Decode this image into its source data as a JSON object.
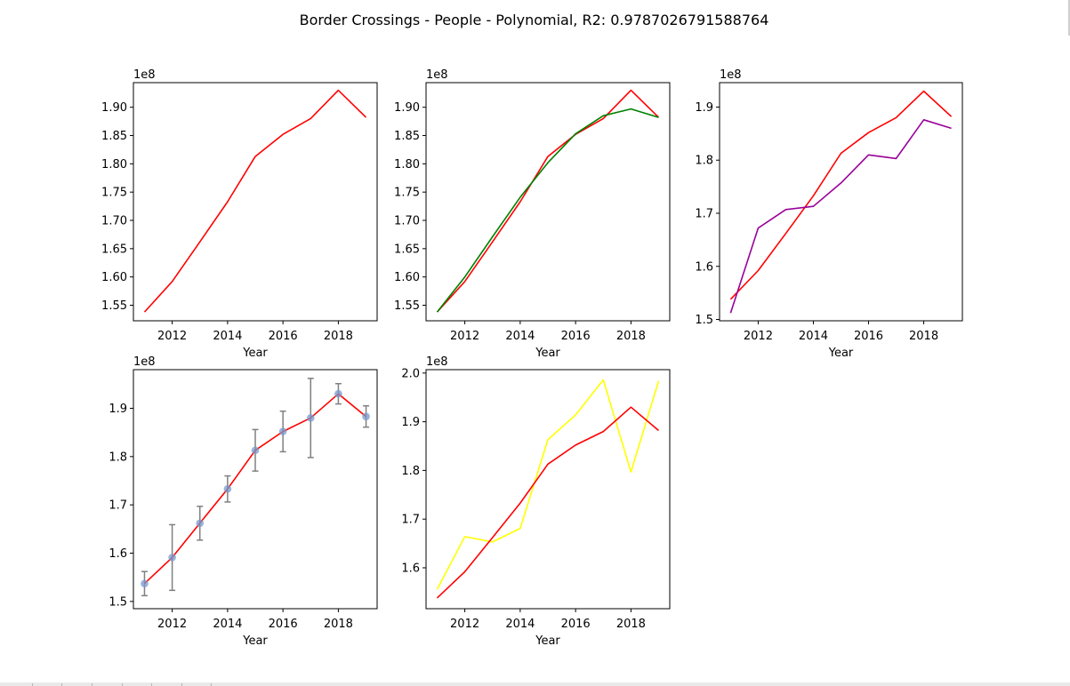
{
  "title": "Border Crossings - People - Polynomial, R2: 0.9787026791588764",
  "colors": {
    "actual": "#ff0000",
    "fit": "#008000",
    "alt": "#990099",
    "pred": "#ffff00",
    "scatter": "#7799cc",
    "errorbar": "#808080"
  },
  "chart_data": [
    {
      "type": "line",
      "xlabel": "Year",
      "offset_text": "1e8",
      "xticks": [
        "2012",
        "2014",
        "2016",
        "2018"
      ],
      "yticks": [
        "1.55",
        "1.60",
        "1.65",
        "1.70",
        "1.75",
        "1.80",
        "1.85",
        "1.90"
      ],
      "xlim": [
        2010.6,
        2019.4
      ],
      "ylim": [
        1.5225,
        1.9435
      ],
      "x": [
        2011,
        2012,
        2013,
        2014,
        2015,
        2016,
        2017,
        2018,
        2019
      ],
      "series": [
        {
          "color": "actual",
          "values": [
            1.538,
            1.592,
            1.662,
            1.733,
            1.813,
            1.852,
            1.88,
            1.93,
            1.882
          ]
        }
      ]
    },
    {
      "type": "line",
      "xlabel": "Year",
      "offset_text": "1e8",
      "xticks": [
        "2012",
        "2014",
        "2016",
        "2018"
      ],
      "yticks": [
        "1.55",
        "1.60",
        "1.65",
        "1.70",
        "1.75",
        "1.80",
        "1.85",
        "1.90"
      ],
      "xlim": [
        2010.6,
        2019.4
      ],
      "ylim": [
        1.5225,
        1.9435
      ],
      "x": [
        2011,
        2012,
        2013,
        2014,
        2015,
        2016,
        2017,
        2018,
        2019
      ],
      "series": [
        {
          "color": "actual",
          "values": [
            1.538,
            1.592,
            1.662,
            1.733,
            1.813,
            1.852,
            1.88,
            1.93,
            1.882
          ]
        },
        {
          "color": "fit",
          "values": [
            1.538,
            1.6,
            1.671,
            1.741,
            1.802,
            1.853,
            1.885,
            1.897,
            1.882
          ]
        }
      ]
    },
    {
      "type": "line",
      "xlabel": "Year",
      "offset_text": "1e8",
      "xticks": [
        "2012",
        "2014",
        "2016",
        "2018"
      ],
      "yticks": [
        "1.5",
        "1.6",
        "1.7",
        "1.8",
        "1.9"
      ],
      "xlim": [
        2010.6,
        2019.4
      ],
      "ylim": [
        1.4975,
        1.946
      ],
      "x": [
        2011,
        2012,
        2013,
        2014,
        2015,
        2016,
        2017,
        2018,
        2019
      ],
      "series": [
        {
          "color": "actual",
          "values": [
            1.538,
            1.592,
            1.662,
            1.733,
            1.813,
            1.852,
            1.88,
            1.93,
            1.882
          ]
        },
        {
          "color": "alt",
          "values": [
            1.512,
            1.672,
            1.707,
            1.713,
            1.757,
            1.81,
            1.803,
            1.876,
            1.86
          ]
        }
      ]
    },
    {
      "type": "scatter",
      "xlabel": "Year",
      "offset_text": "1e8",
      "xticks": [
        "2012",
        "2014",
        "2016",
        "2018"
      ],
      "yticks": [
        "1.5",
        "1.6",
        "1.7",
        "1.8",
        "1.9"
      ],
      "xlim": [
        2010.6,
        2019.4
      ],
      "ylim": [
        1.485,
        1.98
      ],
      "x": [
        2011,
        2012,
        2013,
        2014,
        2015,
        2016,
        2017,
        2018,
        2019
      ],
      "series": [
        {
          "color": "actual",
          "values": [
            1.537,
            1.591,
            1.662,
            1.733,
            1.813,
            1.852,
            1.88,
            1.93,
            1.883
          ]
        }
      ],
      "points": [
        1.537,
        1.591,
        1.662,
        1.733,
        1.813,
        1.852,
        1.88,
        1.93,
        1.883
      ],
      "errors": [
        0.025,
        0.068,
        0.035,
        0.027,
        0.043,
        0.042,
        0.082,
        0.021,
        0.022
      ]
    },
    {
      "type": "line",
      "xlabel": "Year",
      "offset_text": "1e8",
      "xticks": [
        "2012",
        "2014",
        "2016",
        "2018"
      ],
      "yticks": [
        "1.6",
        "1.7",
        "1.8",
        "1.9",
        "2.0"
      ],
      "xlim": [
        2010.6,
        2019.4
      ],
      "ylim": [
        1.516,
        2.007
      ],
      "x": [
        2011,
        2012,
        2013,
        2014,
        2015,
        2016,
        2017,
        2018,
        2019
      ],
      "series": [
        {
          "color": "pred",
          "values": [
            1.556,
            1.664,
            1.653,
            1.681,
            1.863,
            1.914,
            1.986,
            1.797,
            1.984
          ]
        },
        {
          "color": "actual",
          "values": [
            1.538,
            1.592,
            1.662,
            1.733,
            1.813,
            1.852,
            1.88,
            1.93,
            1.882
          ]
        }
      ]
    }
  ]
}
